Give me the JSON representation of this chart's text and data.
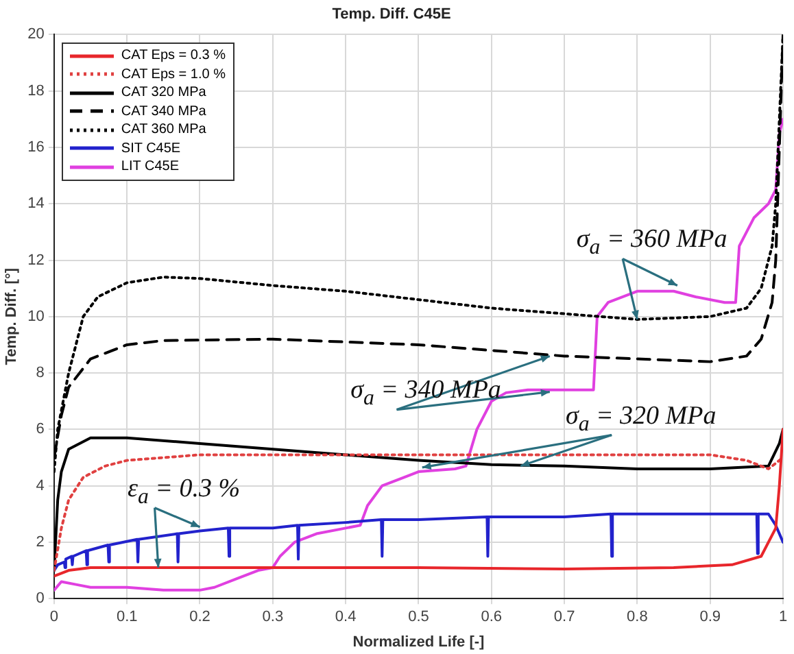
{
  "chart_data": {
    "type": "line",
    "title": "Temp. Diff. C45E",
    "xlabel": "Normalized Life [-]",
    "ylabel": "Temp. Diff. [°]",
    "xlim": [
      0,
      1
    ],
    "xticks": [
      0,
      0.1,
      0.2,
      0.3,
      0.4,
      0.5,
      0.6,
      0.7,
      0.8,
      0.9,
      1
    ],
    "ylim": [
      0,
      20
    ],
    "yticks": [
      0,
      2,
      4,
      6,
      8,
      10,
      12,
      14,
      16,
      18,
      20
    ],
    "grid": true,
    "legend": "top left",
    "marker": "none",
    "series": [
      {
        "name": "CAT Eps = 0.3 %",
        "color": "#e8262b",
        "line_style": "solid",
        "x": [
          0,
          0.02,
          0.05,
          0.2,
          0.5,
          0.7,
          0.85,
          0.93,
          0.97,
          0.99,
          0.995,
          1
        ],
        "values": [
          0.8,
          1.0,
          1.1,
          1.1,
          1.1,
          1.05,
          1.1,
          1.2,
          1.5,
          2.5,
          4,
          6
        ]
      },
      {
        "name": "CAT Eps = 1.0 %",
        "color": "#e04040",
        "line_style": "dotted",
        "x": [
          0,
          0.01,
          0.02,
          0.04,
          0.07,
          0.1,
          0.2,
          0.4,
          0.6,
          0.8,
          0.9,
          0.95,
          0.98,
          1
        ],
        "values": [
          1,
          2.5,
          3.5,
          4.3,
          4.7,
          4.9,
          5.1,
          5.1,
          5.1,
          5.1,
          5.1,
          4.9,
          4.6,
          5
        ]
      },
      {
        "name": "CAT 320 MPa",
        "color": "#000000",
        "line_style": "solid",
        "x": [
          0,
          0.005,
          0.01,
          0.02,
          0.05,
          0.1,
          0.2,
          0.3,
          0.4,
          0.5,
          0.6,
          0.7,
          0.8,
          0.9,
          0.98,
          0.995,
          1
        ],
        "values": [
          1,
          3.5,
          4.5,
          5.3,
          5.7,
          5.7,
          5.5,
          5.3,
          5.1,
          4.9,
          4.75,
          4.7,
          4.6,
          4.6,
          4.7,
          5.5,
          6
        ]
      },
      {
        "name": "CAT 340 MPa",
        "color": "#000000",
        "line_style": "dashed",
        "x": [
          0,
          0.01,
          0.02,
          0.05,
          0.1,
          0.15,
          0.3,
          0.4,
          0.5,
          0.6,
          0.7,
          0.8,
          0.9,
          0.95,
          0.97,
          0.985,
          0.99,
          0.995,
          1
        ],
        "values": [
          5,
          6.5,
          7.5,
          8.5,
          9.0,
          9.15,
          9.2,
          9.1,
          9.0,
          8.8,
          8.6,
          8.5,
          8.4,
          8.6,
          9.2,
          10.5,
          12,
          16,
          20
        ]
      },
      {
        "name": "CAT 360 MPa",
        "color": "#000000",
        "line_style": "dotted",
        "x": [
          0,
          0.005,
          0.02,
          0.04,
          0.06,
          0.1,
          0.15,
          0.2,
          0.3,
          0.4,
          0.5,
          0.6,
          0.7,
          0.8,
          0.9,
          0.95,
          0.97,
          0.985,
          0.99,
          0.995,
          1
        ],
        "values": [
          4.5,
          6,
          8,
          10,
          10.7,
          11.2,
          11.4,
          11.35,
          11.1,
          10.9,
          10.6,
          10.3,
          10.1,
          9.9,
          10.0,
          10.3,
          11,
          12.5,
          14,
          17,
          20
        ]
      },
      {
        "name": "SIT C45E",
        "color": "#2222cc",
        "line_style": "solid",
        "x": [
          0,
          0.005,
          0.014,
          0.015,
          0.016,
          0.024,
          0.025,
          0.026,
          0.044,
          0.045,
          0.046,
          0.074,
          0.075,
          0.076,
          0.114,
          0.115,
          0.116,
          0.169,
          0.17,
          0.171,
          0.2,
          0.239,
          0.24,
          0.241,
          0.3,
          0.334,
          0.335,
          0.336,
          0.4,
          0.449,
          0.45,
          0.451,
          0.5,
          0.594,
          0.595,
          0.596,
          0.7,
          0.764,
          0.765,
          0.766,
          0.9,
          0.964,
          0.965,
          0.966,
          0.98,
          0.99,
          1
        ],
        "values": [
          1.0,
          1.2,
          1.3,
          1.1,
          1.4,
          1.5,
          1.2,
          1.5,
          1.7,
          1.2,
          1.7,
          1.9,
          1.3,
          1.9,
          2.1,
          1.3,
          2.1,
          2.3,
          1.3,
          2.3,
          2.4,
          2.5,
          1.5,
          2.5,
          2.5,
          2.6,
          1.4,
          2.6,
          2.7,
          2.8,
          1.5,
          2.8,
          2.8,
          2.9,
          1.5,
          2.9,
          2.9,
          3.0,
          1.5,
          3.0,
          3.0,
          3.0,
          1.6,
          3.0,
          3.0,
          2.6,
          2.0
        ]
      },
      {
        "name": "LIT C45E",
        "color": "#e040e0",
        "line_style": "solid",
        "x": [
          0,
          0.01,
          0.03,
          0.05,
          0.1,
          0.15,
          0.2,
          0.22,
          0.25,
          0.28,
          0.3,
          0.31,
          0.33,
          0.36,
          0.4,
          0.42,
          0.43,
          0.45,
          0.48,
          0.5,
          0.55,
          0.565,
          0.58,
          0.6,
          0.62,
          0.65,
          0.7,
          0.74,
          0.745,
          0.76,
          0.8,
          0.85,
          0.88,
          0.92,
          0.935,
          0.94,
          0.96,
          0.98,
          0.99,
          0.995,
          1
        ],
        "values": [
          0.3,
          0.6,
          0.5,
          0.4,
          0.4,
          0.3,
          0.3,
          0.4,
          0.7,
          1.0,
          1.1,
          1.5,
          2.0,
          2.3,
          2.5,
          2.6,
          3.3,
          4.0,
          4.3,
          4.5,
          4.6,
          4.7,
          6.0,
          7.0,
          7.3,
          7.4,
          7.4,
          7.4,
          10.0,
          10.5,
          10.9,
          10.9,
          10.7,
          10.5,
          10.5,
          12.5,
          13.5,
          14.0,
          14.5,
          16.5,
          17.0
        ]
      }
    ],
    "annotations": [
      {
        "text": "σ$_{a}$ = 360 MPa",
        "x": 0.8,
        "y": 9.9
      },
      {
        "text": "σ$_{a}$ = 340 MPa",
        "x": 0.68,
        "y": 8.6
      },
      {
        "text": "σ$_{a}$ = 320 MPa",
        "x": 0.64,
        "y": 4.7
      },
      {
        "text": "ε$_{a}$ = 0.3 %",
        "x": 0.143,
        "y": 1.1
      }
    ]
  }
}
